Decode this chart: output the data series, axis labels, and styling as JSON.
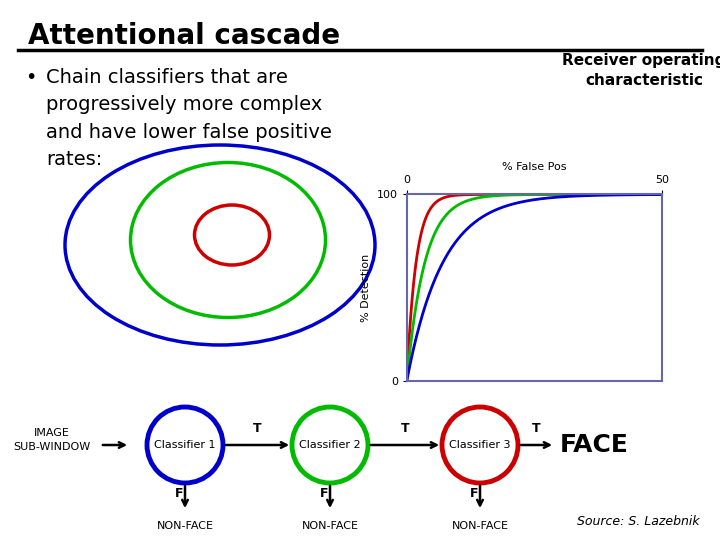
{
  "title": "Attentional cascade",
  "bullet_text": "Chain classifiers that are\nprogressively more complex\nand have lower false positive\nrates:",
  "roc_title": "Receiver operating\ncharacteristic",
  "roc_xlabel": "% False Pos",
  "roc_ylabel": "% Detection",
  "bg_color": "#ffffff",
  "title_color": "#000000",
  "blue_color": "#0000cc",
  "green_color": "#00bb00",
  "red_color": "#cc0000",
  "source_text": "Source: S. Lazebnik",
  "classifier_labels": [
    "Classifier 1",
    "Classifier 2",
    "Classifier 3"
  ],
  "classifier_colors": [
    "#0000cc",
    "#00bb00",
    "#cc0000"
  ],
  "flow_start": "IMAGE\nSUB-WINDOW",
  "flow_end": "FACE",
  "title_fontsize": 20,
  "bullet_fontsize": 14,
  "roc_title_fontsize": 11
}
